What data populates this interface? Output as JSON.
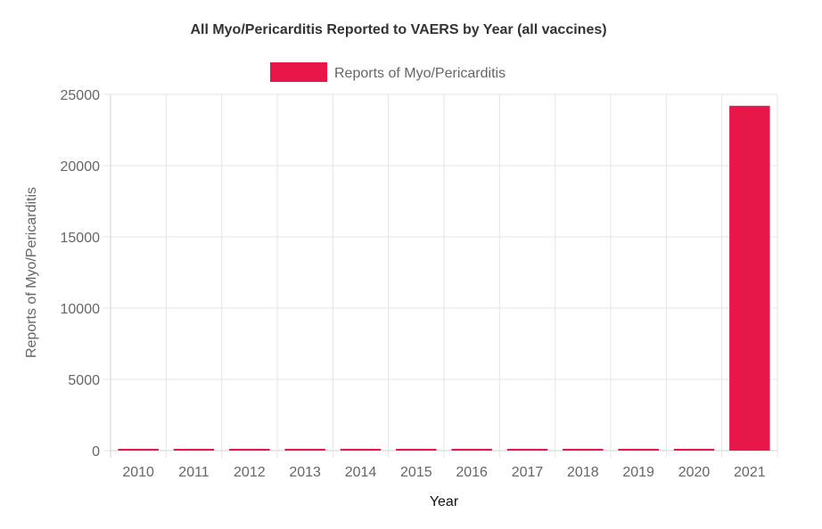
{
  "chart_data": {
    "type": "bar",
    "title": "All Myo/Pericarditis Reported to VAERS by Year (all vaccines)",
    "xlabel": "Year",
    "ylabel": "Reports of Myo/Pericarditis",
    "categories": [
      "2010",
      "2011",
      "2012",
      "2013",
      "2014",
      "2015",
      "2016",
      "2017",
      "2018",
      "2019",
      "2020",
      "2021"
    ],
    "series": [
      {
        "name": "Reports of Myo/Pericarditis",
        "color": "#e8174a",
        "values": [
          60,
          55,
          100,
          100,
          50,
          50,
          50,
          45,
          90,
          50,
          45,
          24200
        ]
      }
    ],
    "ylim": [
      0,
      25000
    ],
    "yticks": [
      "0",
      "5000",
      "10000",
      "15000",
      "20000",
      "25000"
    ],
    "grid": true,
    "legend": "top-center"
  }
}
